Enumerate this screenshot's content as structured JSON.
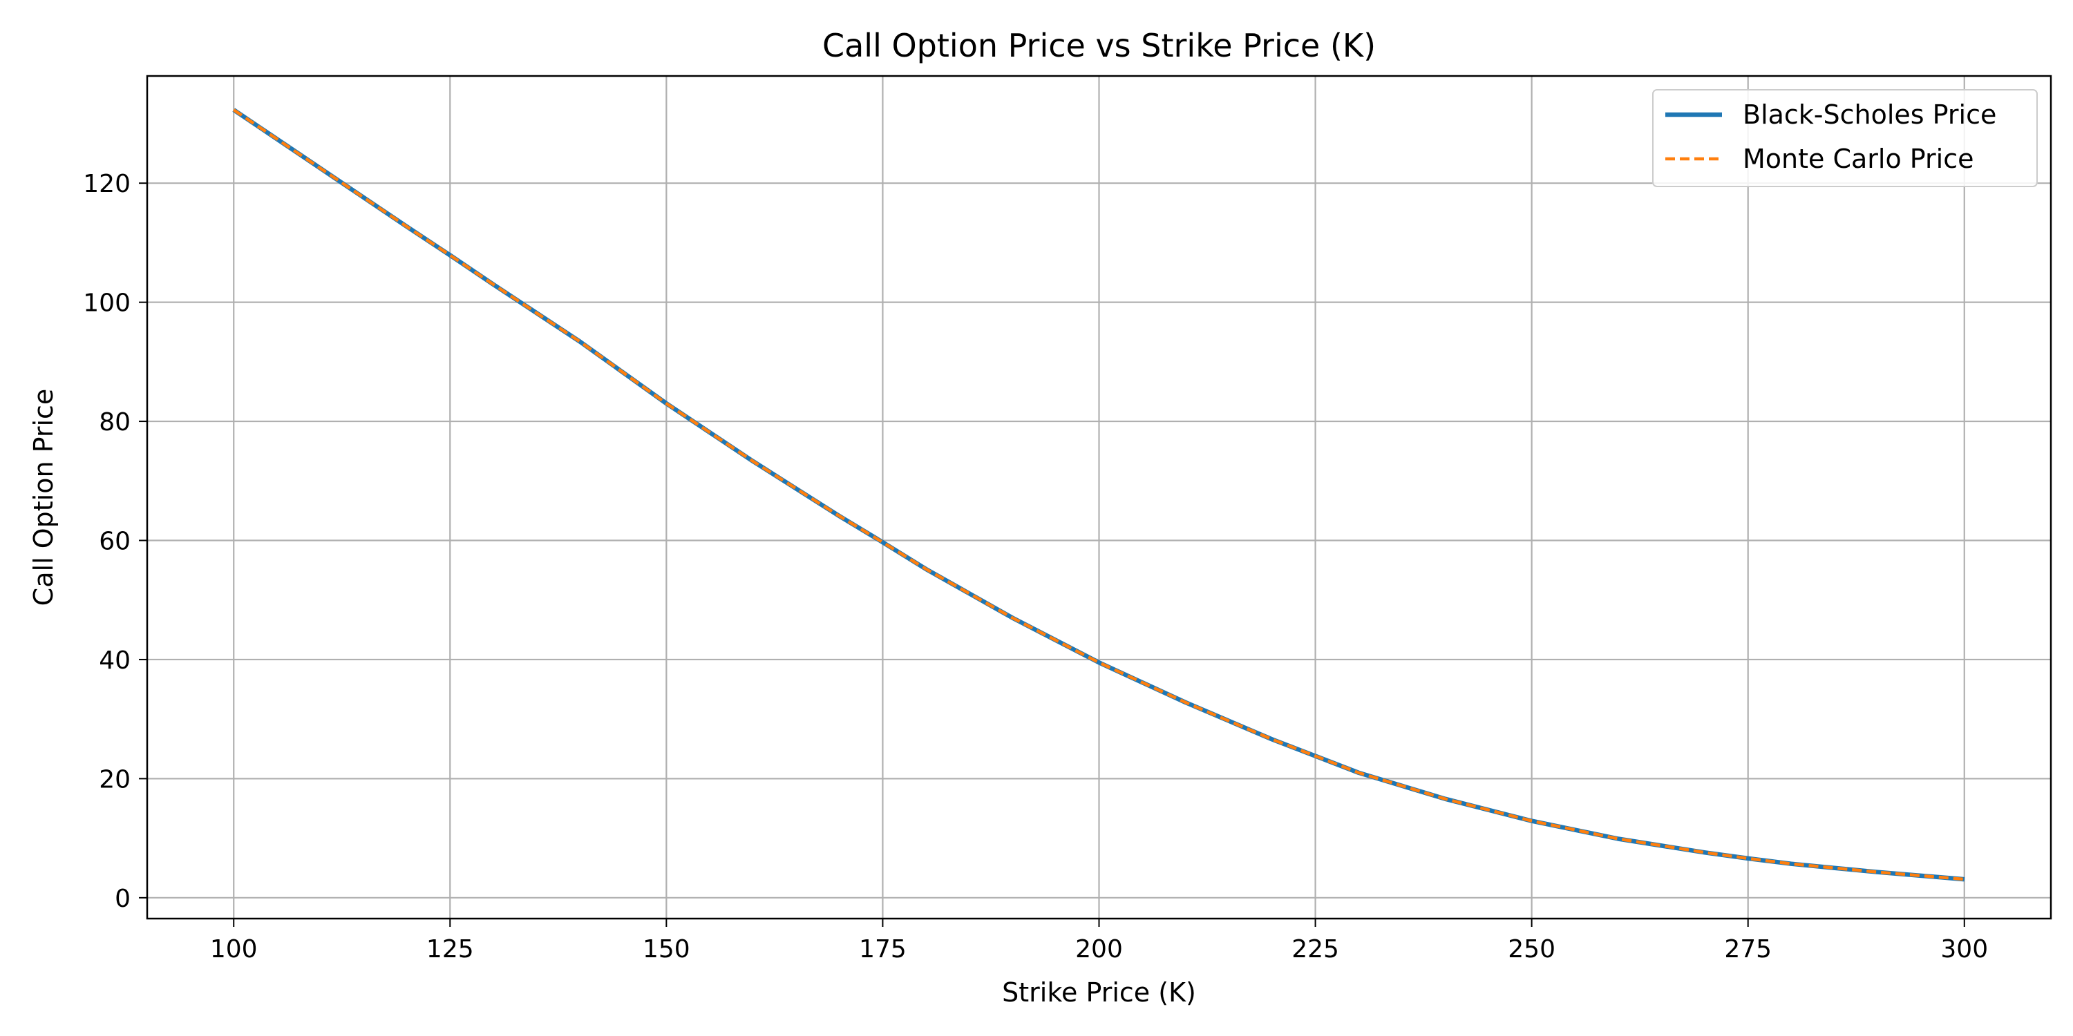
{
  "chart_data": {
    "type": "line",
    "title": "Call Option Price vs Strike Price (K)",
    "xlabel": "Strike Price (K)",
    "ylabel": "Call Option Price",
    "xlim": [
      90,
      310
    ],
    "ylim": [
      -3.5,
      138
    ],
    "xticks": [
      100,
      125,
      150,
      175,
      200,
      225,
      250,
      275,
      300
    ],
    "yticks": [
      0,
      20,
      40,
      60,
      80,
      100,
      120
    ],
    "grid": true,
    "legend_position": "top-right",
    "x": [
      100,
      110,
      120,
      125,
      130,
      140,
      150,
      160,
      170,
      175,
      180,
      190,
      200,
      210,
      220,
      225,
      230,
      240,
      250,
      260,
      270,
      275,
      280,
      290,
      300
    ],
    "series": [
      {
        "name": "Black-Scholes Price",
        "color": "#1f77b4",
        "style": "solid",
        "values": [
          132.3,
          122.5,
          112.7,
          107.9,
          103.0,
          93.4,
          83.0,
          73.3,
          64.1,
          59.7,
          55.2,
          47.0,
          39.5,
          32.8,
          26.6,
          23.8,
          21.0,
          16.6,
          12.9,
          9.9,
          7.6,
          6.6,
          5.7,
          4.3,
          3.1
        ]
      },
      {
        "name": "Monte Carlo Price",
        "color": "#ff7f0e",
        "style": "dashed",
        "values": [
          132.3,
          122.5,
          112.7,
          107.9,
          103.0,
          93.4,
          83.0,
          73.3,
          64.1,
          59.7,
          55.2,
          47.0,
          39.5,
          32.8,
          26.6,
          23.8,
          21.0,
          16.6,
          12.9,
          9.9,
          7.6,
          6.6,
          5.7,
          4.3,
          3.1
        ]
      }
    ]
  }
}
